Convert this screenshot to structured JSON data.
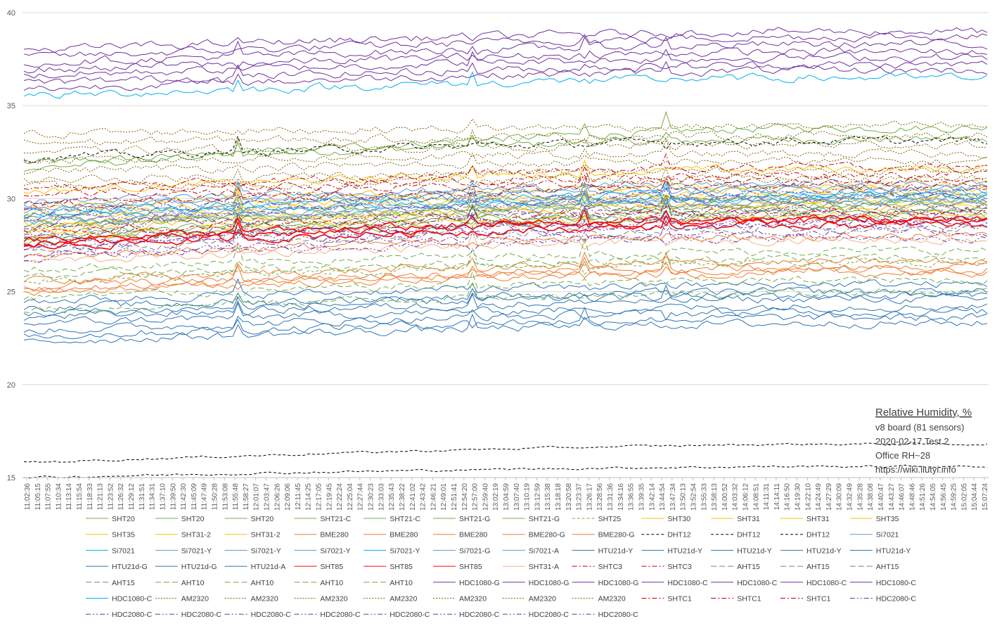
{
  "chart_data": {
    "type": "line",
    "title": "Relative Humidity, %",
    "annotations": [
      "v8 board (81 sensors)",
      "2020-02-17 Test 2",
      "Office RH~28",
      "https://wiki.liutyi.info"
    ],
    "ylim": [
      15,
      40
    ],
    "yticks": [
      "15",
      "20",
      "25",
      "30",
      "35",
      "40"
    ],
    "grid": true,
    "legend_position": "bottom",
    "x": [
      "11:02:36",
      "11:05:15",
      "11:07:55",
      "11:10:34",
      "11:13:14",
      "11:15:54",
      "11:18:33",
      "11:21:13",
      "11:23:52",
      "11:26:32",
      "11:29:12",
      "11:31:51",
      "11:34:31",
      "11:37:10",
      "11:39:50",
      "11:42:30",
      "11:45:09",
      "11:47:49",
      "11:50:28",
      "11:53:08",
      "11:55:48",
      "11:58:27",
      "12:01:07",
      "12:03:47",
      "12:06:26",
      "12:09:06",
      "12:11:45",
      "12:14:25",
      "12:17:05",
      "12:19:45",
      "12:22:24",
      "12:25:04",
      "12:27:44",
      "12:30:23",
      "12:33:03",
      "12:35:43",
      "12:38:22",
      "12:41:02",
      "12:43:42",
      "12:46:21",
      "12:49:01",
      "12:51:41",
      "12:54:20",
      "12:57:00",
      "12:59:40",
      "13:02:19",
      "13:04:59",
      "13:07:40",
      "13:10:19",
      "13:12:59",
      "13:15:38",
      "13:18:18",
      "13:20:58",
      "13:23:37",
      "13:26:17",
      "13:28:56",
      "13:31:36",
      "13:34:16",
      "13:36:55",
      "13:39:35",
      "13:42:14",
      "13:44:54",
      "13:47:34",
      "13:50:13",
      "13:52:54",
      "13:55:33",
      "13:58:13",
      "14:00:52",
      "14:03:32",
      "14:06:12",
      "14:08:51",
      "14:11:31",
      "14:14:11",
      "14:16:50",
      "14:19:30",
      "14:22:10",
      "14:24:49",
      "14:27:29",
      "14:30:09",
      "14:32:49",
      "14:35:28",
      "14:38:08",
      "14:40:47",
      "14:43:27",
      "14:46:07",
      "14:48:46",
      "14:51:26",
      "14:54:05",
      "14:56:45",
      "14:59:25",
      "15:02:05",
      "15:04:44",
      "15:07:24"
    ],
    "series": [
      {
        "name": "SHT20",
        "color": "#70ad47",
        "dash": "solid",
        "start": 31.9,
        "end": 33.2
      },
      {
        "name": "SHT20",
        "color": "#70ad47",
        "dash": "solid",
        "start": 31.6,
        "end": 33.8
      },
      {
        "name": "SHT20",
        "color": "#70ad47",
        "dash": "solid",
        "start": 28.1,
        "end": 29.4
      },
      {
        "name": "SHT21-C",
        "color": "#70ad47",
        "dash": "solid",
        "start": 28.4,
        "end": 29.7
      },
      {
        "name": "SHT21-C",
        "color": "#70ad47",
        "dash": "solid",
        "start": 28.0,
        "end": 29.3
      },
      {
        "name": "SHT21-G",
        "color": "#70ad47",
        "dash": "solid",
        "start": 27.7,
        "end": 29.0
      },
      {
        "name": "SHT21-G",
        "color": "#70ad47",
        "dash": "solid",
        "start": 28.6,
        "end": 29.9
      },
      {
        "name": "SHT25",
        "color": "#70ad47",
        "dash": "dash",
        "start": 25.5,
        "end": 26.6
      },
      {
        "name": "SHT30",
        "color": "#ffc000",
        "dash": "solid",
        "start": 30.4,
        "end": 31.6
      },
      {
        "name": "SHT31",
        "color": "#ffc000",
        "dash": "solid",
        "start": 28.9,
        "end": 30.2
      },
      {
        "name": "SHT31",
        "color": "#ffc000",
        "dash": "solid",
        "start": 28.6,
        "end": 29.8
      },
      {
        "name": "SHT35",
        "color": "#ffc000",
        "dash": "solid",
        "start": 29.2,
        "end": 30.4
      },
      {
        "name": "SHT35",
        "color": "#ffc000",
        "dash": "solid",
        "start": 28.3,
        "end": 29.6
      },
      {
        "name": "SHT31-2",
        "color": "#ffc000",
        "dash": "solid",
        "start": 29.5,
        "end": 30.7
      },
      {
        "name": "SHT31-2",
        "color": "#ffc000",
        "dash": "solid",
        "start": 27.9,
        "end": 29.1
      },
      {
        "name": "BME280",
        "color": "#ed7d31",
        "dash": "solid",
        "start": 26.9,
        "end": 28.0
      },
      {
        "name": "BME280",
        "color": "#ed7d31",
        "dash": "solid",
        "start": 25.3,
        "end": 26.3
      },
      {
        "name": "BME280",
        "color": "#ed7d31",
        "dash": "solid",
        "start": 25.0,
        "end": 26.0
      },
      {
        "name": "BME280-G",
        "color": "#ed7d31",
        "dash": "solid",
        "start": 25.6,
        "end": 26.6
      },
      {
        "name": "BME280-G",
        "color": "#ed7d31",
        "dash": "solid",
        "start": 25.1,
        "end": 26.2
      },
      {
        "name": "DHT12",
        "color": "#000000",
        "dash": "dash",
        "start": 32.2,
        "end": 33.1
      },
      {
        "name": "DHT12",
        "color": "#000000",
        "dash": "dash",
        "start": 15.8,
        "end": 16.8
      },
      {
        "name": "DHT12",
        "color": "#000000",
        "dash": "dash",
        "start": 15.0,
        "end": 15.6
      },
      {
        "name": "Si7021",
        "color": "#5b9bd5",
        "dash": "solid",
        "start": 29.6,
        "end": 30.6
      },
      {
        "name": "Si7021",
        "color": "#00b0f0",
        "dash": "solid",
        "start": 29.3,
        "end": 30.3
      },
      {
        "name": "Si7021-Y",
        "color": "#5b9bd5",
        "dash": "solid",
        "start": 29.0,
        "end": 30.0
      },
      {
        "name": "Si7021-Y",
        "color": "#5b9bd5",
        "dash": "solid",
        "start": 28.7,
        "end": 29.8
      },
      {
        "name": "Si7021-Y",
        "color": "#5b9bd5",
        "dash": "solid",
        "start": 29.8,
        "end": 30.8
      },
      {
        "name": "Si7021-Y",
        "color": "#00b0f0",
        "dash": "solid",
        "start": 29.1,
        "end": 30.1
      },
      {
        "name": "Si7021-G",
        "color": "#5b9bd5",
        "dash": "solid",
        "start": 28.8,
        "end": 29.9
      },
      {
        "name": "Si7021-A",
        "color": "#5b9bd5",
        "dash": "solid",
        "start": 29.4,
        "end": 30.5
      },
      {
        "name": "HTU21d-Y",
        "color": "#2e75b6",
        "dash": "solid",
        "start": 24.1,
        "end": 25.0
      },
      {
        "name": "HTU21d-Y",
        "color": "#2e75b6",
        "dash": "solid",
        "start": 23.6,
        "end": 24.6
      },
      {
        "name": "HTU21d-Y",
        "color": "#2e75b6",
        "dash": "solid",
        "start": 23.3,
        "end": 24.2
      },
      {
        "name": "HTU21d-Y",
        "color": "#2e75b6",
        "dash": "solid",
        "start": 22.9,
        "end": 23.9
      },
      {
        "name": "HTU21d-Y",
        "color": "#2e75b6",
        "dash": "solid",
        "start": 22.6,
        "end": 23.6
      },
      {
        "name": "HTU21d-G",
        "color": "#2e75b6",
        "dash": "solid",
        "start": 22.3,
        "end": 23.3
      },
      {
        "name": "HTU21d-G",
        "color": "#2e75b6",
        "dash": "solid",
        "start": 24.5,
        "end": 25.4
      },
      {
        "name": "HTU21d-A",
        "color": "#2e75b6",
        "dash": "solid",
        "start": 23.8,
        "end": 24.8
      },
      {
        "name": "SHT85",
        "color": "#ff0000",
        "dash": "solid",
        "start": 27.6,
        "end": 28.8
      },
      {
        "name": "SHT85",
        "color": "#ff0000",
        "dash": "solid",
        "start": 27.4,
        "end": 28.6
      },
      {
        "name": "SHT85",
        "color": "#ff0000",
        "dash": "solid",
        "start": 27.8,
        "end": 28.9
      },
      {
        "name": "SHT31-A",
        "color": "#f4b183",
        "dash": "solid",
        "start": 26.6,
        "end": 27.8
      },
      {
        "name": "SHTC3",
        "color": "#c00000",
        "dash": "dashdot",
        "start": 30.2,
        "end": 31.3
      },
      {
        "name": "SHTC3",
        "color": "#c00000",
        "dash": "dashdot",
        "start": 29.9,
        "end": 31.0
      },
      {
        "name": "AHT15",
        "color": "#7f7f7f",
        "dash": "longdash",
        "start": 29.0,
        "end": 30.1
      },
      {
        "name": "AHT15",
        "color": "#7f7f7f",
        "dash": "longdash",
        "start": 28.5,
        "end": 29.6
      },
      {
        "name": "AHT15",
        "color": "#7f7f7f",
        "dash": "longdash",
        "start": 27.9,
        "end": 29.0
      },
      {
        "name": "AHT15",
        "color": "#7f7f7f",
        "dash": "longdash",
        "start": 27.2,
        "end": 28.4
      },
      {
        "name": "AHT10",
        "color": "#70ad47",
        "dash": "longdash",
        "start": 25.8,
        "end": 26.8
      },
      {
        "name": "AHT10",
        "color": "#70ad47",
        "dash": "longdash",
        "start": 24.7,
        "end": 25.6
      },
      {
        "name": "AHT10",
        "color": "#70ad47",
        "dash": "longdash",
        "start": 24.0,
        "end": 25.0
      },
      {
        "name": "AHT10",
        "color": "#70ad47",
        "dash": "longdash",
        "start": 26.2,
        "end": 27.2
      },
      {
        "name": "HDC1080-G",
        "color": "#7030a0",
        "dash": "solid",
        "start": 38.0,
        "end": 39.0
      },
      {
        "name": "HDC1080-G",
        "color": "#7030a0",
        "dash": "solid",
        "start": 37.6,
        "end": 38.7
      },
      {
        "name": "HDC1080-G",
        "color": "#7030a0",
        "dash": "solid",
        "start": 37.3,
        "end": 38.3
      },
      {
        "name": "HDC1080-C",
        "color": "#7030a0",
        "dash": "solid",
        "start": 36.9,
        "end": 37.9
      },
      {
        "name": "HDC1080-C",
        "color": "#7030a0",
        "dash": "solid",
        "start": 36.6,
        "end": 37.6
      },
      {
        "name": "HDC1080-C",
        "color": "#7030a0",
        "dash": "solid",
        "start": 36.2,
        "end": 37.2
      },
      {
        "name": "HDC1080-C",
        "color": "#7030a0",
        "dash": "solid",
        "start": 35.9,
        "end": 36.9
      },
      {
        "name": "HDC1080-C",
        "color": "#00b0f0",
        "dash": "solid",
        "start": 35.5,
        "end": 36.5
      },
      {
        "name": "AM2320",
        "color": "#7f6000",
        "dash": "dot",
        "start": 33.5,
        "end": 33.9
      },
      {
        "name": "AM2320",
        "color": "#7f6000",
        "dash": "dot",
        "start": 33.0,
        "end": 33.4
      },
      {
        "name": "AM2320",
        "color": "#7f6000",
        "dash": "dot",
        "start": 32.5,
        "end": 32.9
      },
      {
        "name": "AM2320",
        "color": "#7f6000",
        "dash": "dot",
        "start": 32.0,
        "end": 32.4
      },
      {
        "name": "AM2320",
        "color": "#7f6000",
        "dash": "dot",
        "start": 31.5,
        "end": 32.0
      },
      {
        "name": "AM2320",
        "color": "#7f6000",
        "dash": "dot",
        "start": 31.0,
        "end": 31.5
      },
      {
        "name": "AM2320",
        "color": "#7f6000",
        "dash": "dot",
        "start": 30.6,
        "end": 31.1
      },
      {
        "name": "SHTC1",
        "color": "#c00000",
        "dash": "dashdot",
        "start": 30.5,
        "end": 31.7
      },
      {
        "name": "SHTC1",
        "color": "#c00000",
        "dash": "dashdot",
        "start": 29.6,
        "end": 30.7
      },
      {
        "name": "SHTC1",
        "color": "#c00000",
        "dash": "dashdot",
        "start": 28.2,
        "end": 29.3
      },
      {
        "name": "HDC2080-C",
        "color": "#7030a0",
        "dash": "dashdotdot",
        "start": 28.9,
        "end": 30.0
      },
      {
        "name": "HDC2080-C",
        "color": "#7030a0",
        "dash": "dashdotdot",
        "start": 28.4,
        "end": 29.5
      },
      {
        "name": "HDC2080-C",
        "color": "#7030a0",
        "dash": "dashdotdot",
        "start": 27.7,
        "end": 28.9
      },
      {
        "name": "HDC2080-C",
        "color": "#7030a0",
        "dash": "dashdotdot",
        "start": 27.3,
        "end": 28.5
      },
      {
        "name": "HDC2080-C",
        "color": "#7030a0",
        "dash": "dashdotdot",
        "start": 27.0,
        "end": 28.2
      },
      {
        "name": "HDC2080-C",
        "color": "#7030a0",
        "dash": "dashdotdot",
        "start": 29.3,
        "end": 30.4
      },
      {
        "name": "HDC2080-C",
        "color": "#7030a0",
        "dash": "dashdotdot",
        "start": 26.8,
        "end": 27.9
      },
      {
        "name": "HDC2080-C",
        "color": "#7030a0",
        "dash": "dashdotdot",
        "start": 27.5,
        "end": 28.7
      },
      {
        "name": "HDC2080-C",
        "color": "#7030a0",
        "dash": "dashdotdot",
        "start": 28.0,
        "end": 29.2
      }
    ]
  }
}
